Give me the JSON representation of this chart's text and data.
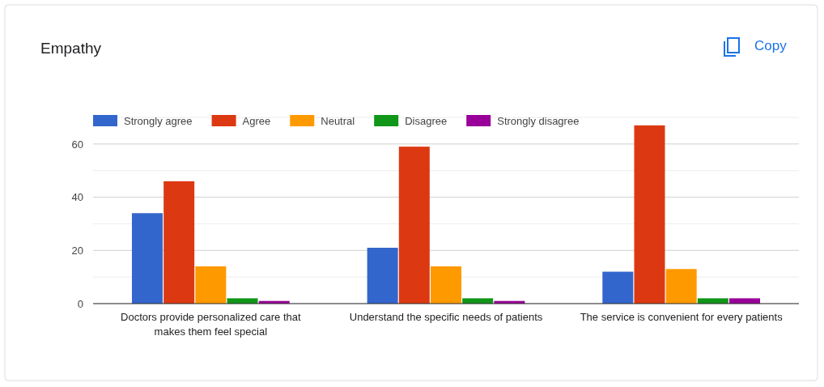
{
  "chart_data": {
    "type": "bar",
    "title": "Empathy",
    "categories": [
      "Doctors provide personalized care that makes them feel special",
      "Understand the specific needs of patients",
      "The service is convenient for every patients"
    ],
    "series": [
      {
        "name": "Strongly agree",
        "color": "#3366cc",
        "values": [
          34,
          21,
          12
        ]
      },
      {
        "name": "Agree",
        "color": "#dc3912",
        "values": [
          46,
          59,
          67
        ]
      },
      {
        "name": "Neutral",
        "color": "#ff9900",
        "values": [
          14,
          14,
          13
        ]
      },
      {
        "name": "Disagree",
        "color": "#109618",
        "values": [
          2,
          2,
          2
        ]
      },
      {
        "name": "Strongly disagree",
        "color": "#990099",
        "values": [
          1,
          1,
          2
        ]
      }
    ],
    "ylim": [
      0,
      70
    ],
    "yticks": [
      0,
      20,
      40,
      60
    ],
    "grid": "y",
    "legend": "top",
    "annotations": [
      "Copy"
    ]
  }
}
